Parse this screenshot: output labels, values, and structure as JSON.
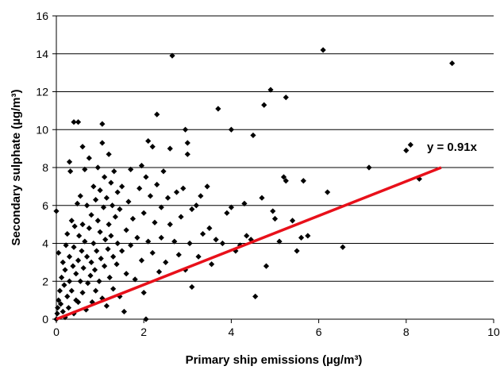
{
  "chart_data": {
    "type": "scatter",
    "title": "",
    "xlabel": "Primary ship emissions (µg/m³)",
    "ylabel": "Secondary sulphate  (µg/m³)",
    "xlim": [
      0,
      10
    ],
    "ylim": [
      0,
      16
    ],
    "xticks": [
      "0",
      "2",
      "4",
      "6",
      "8",
      "10"
    ],
    "yticks": [
      "0",
      "2",
      "4",
      "6",
      "8",
      "10",
      "12",
      "14",
      "16"
    ],
    "grid": "horizontal",
    "legend": "none",
    "colors": {
      "points": "#000000",
      "fit_line": "#e8101a",
      "grid": "#000000"
    },
    "fit": {
      "label": "y = 0.91x",
      "slope": 0.91,
      "x": [
        0,
        8.8
      ],
      "y": [
        0,
        8.0
      ]
    },
    "points": [
      [
        0.0,
        0.0
      ],
      [
        0.02,
        0.3
      ],
      [
        0.03,
        0.6
      ],
      [
        0.05,
        1.0
      ],
      [
        0.0,
        5.7
      ],
      [
        0.05,
        3.5
      ],
      [
        0.08,
        1.5
      ],
      [
        0.1,
        0.8
      ],
      [
        0.12,
        2.2
      ],
      [
        0.15,
        0.4
      ],
      [
        0.15,
        3.0
      ],
      [
        0.18,
        1.8
      ],
      [
        0.2,
        0.1
      ],
      [
        0.2,
        2.6
      ],
      [
        0.22,
        3.9
      ],
      [
        0.25,
        1.2
      ],
      [
        0.25,
        4.5
      ],
      [
        0.28,
        0.6
      ],
      [
        0.3,
        2.0
      ],
      [
        0.3,
        3.3
      ],
      [
        0.3,
        8.3
      ],
      [
        0.32,
        7.8
      ],
      [
        0.35,
        1.5
      ],
      [
        0.35,
        5.2
      ],
      [
        0.38,
        2.8
      ],
      [
        0.4,
        0.3
      ],
      [
        0.4,
        3.8
      ],
      [
        0.4,
        10.4
      ],
      [
        0.42,
        4.9
      ],
      [
        0.45,
        1.0
      ],
      [
        0.45,
        2.4
      ],
      [
        0.48,
        6.1
      ],
      [
        0.5,
        10.4
      ],
      [
        0.5,
        3.1
      ],
      [
        0.5,
        0.9
      ],
      [
        0.52,
        4.4
      ],
      [
        0.55,
        2.0
      ],
      [
        0.55,
        6.5
      ],
      [
        0.58,
        3.6
      ],
      [
        0.6,
        9.1
      ],
      [
        0.6,
        1.4
      ],
      [
        0.6,
        5.0
      ],
      [
        0.62,
        2.7
      ],
      [
        0.65,
        7.9
      ],
      [
        0.65,
        4.1
      ],
      [
        0.68,
        0.5
      ],
      [
        0.7,
        3.3
      ],
      [
        0.7,
        6.0
      ],
      [
        0.72,
        1.9
      ],
      [
        0.75,
        8.5
      ],
      [
        0.75,
        4.8
      ],
      [
        0.78,
        2.3
      ],
      [
        0.8,
        5.5
      ],
      [
        0.8,
        3.0
      ],
      [
        0.82,
        0.9
      ],
      [
        0.85,
        7.0
      ],
      [
        0.85,
        4.0
      ],
      [
        0.88,
        2.6
      ],
      [
        0.9,
        6.3
      ],
      [
        0.9,
        1.5
      ],
      [
        0.92,
        3.6
      ],
      [
        0.95,
        5.2
      ],
      [
        0.95,
        8.0
      ],
      [
        0.98,
        2.0
      ],
      [
        1.0,
        4.6
      ],
      [
        1.0,
        6.8
      ],
      [
        1.02,
        3.2
      ],
      [
        1.05,
        9.3
      ],
      [
        1.05,
        1.1
      ],
      [
        1.05,
        10.3
      ],
      [
        1.08,
        5.9
      ],
      [
        1.1,
        7.5
      ],
      [
        1.1,
        2.8
      ],
      [
        1.12,
        4.2
      ],
      [
        1.15,
        6.4
      ],
      [
        1.15,
        0.7
      ],
      [
        1.18,
        3.7
      ],
      [
        1.2,
        8.7
      ],
      [
        1.2,
        5.0
      ],
      [
        1.22,
        2.2
      ],
      [
        1.25,
        7.2
      ],
      [
        1.25,
        4.4
      ],
      [
        1.28,
        6.0
      ],
      [
        1.3,
        3.3
      ],
      [
        1.3,
        1.6
      ],
      [
        1.32,
        7.8
      ],
      [
        1.35,
        5.4
      ],
      [
        1.38,
        2.9
      ],
      [
        1.4,
        6.7
      ],
      [
        1.4,
        4.0
      ],
      [
        1.45,
        1.2
      ],
      [
        1.45,
        5.8
      ],
      [
        1.5,
        3.6
      ],
      [
        1.5,
        7.0
      ],
      [
        1.55,
        0.4
      ],
      [
        1.6,
        4.7
      ],
      [
        1.6,
        2.4
      ],
      [
        1.65,
        6.2
      ],
      [
        1.7,
        7.9
      ],
      [
        1.7,
        3.9
      ],
      [
        1.75,
        5.3
      ],
      [
        1.8,
        2.1
      ],
      [
        1.85,
        4.3
      ],
      [
        1.9,
        6.9
      ],
      [
        1.95,
        3.1
      ],
      [
        1.95,
        8.1
      ],
      [
        2.0,
        5.6
      ],
      [
        2.0,
        1.4
      ],
      [
        2.05,
        7.5
      ],
      [
        2.05,
        0.0
      ],
      [
        2.1,
        9.4
      ],
      [
        2.1,
        4.1
      ],
      [
        2.15,
        6.5
      ],
      [
        2.2,
        3.5
      ],
      [
        2.2,
        9.1
      ],
      [
        2.25,
        5.1
      ],
      [
        2.3,
        7.1
      ],
      [
        2.3,
        10.8
      ],
      [
        2.35,
        2.5
      ],
      [
        2.4,
        5.9
      ],
      [
        2.4,
        4.3
      ],
      [
        2.45,
        7.8
      ],
      [
        2.5,
        3.0
      ],
      [
        2.55,
        6.4
      ],
      [
        2.6,
        5.0
      ],
      [
        2.6,
        9.0
      ],
      [
        2.65,
        13.9
      ],
      [
        2.7,
        4.1
      ],
      [
        2.75,
        6.7
      ],
      [
        2.8,
        3.4
      ],
      [
        2.85,
        5.4
      ],
      [
        2.9,
        6.9
      ],
      [
        2.95,
        10.0
      ],
      [
        2.95,
        2.6
      ],
      [
        3.0,
        9.3
      ],
      [
        3.0,
        8.7
      ],
      [
        3.05,
        4.0
      ],
      [
        3.1,
        1.7
      ],
      [
        3.1,
        5.8
      ],
      [
        3.2,
        6.0
      ],
      [
        3.25,
        3.3
      ],
      [
        3.3,
        6.5
      ],
      [
        3.35,
        4.5
      ],
      [
        3.45,
        7.0
      ],
      [
        3.5,
        4.8
      ],
      [
        3.55,
        2.9
      ],
      [
        3.65,
        4.2
      ],
      [
        3.7,
        11.1
      ],
      [
        3.8,
        4.0
      ],
      [
        3.9,
        5.6
      ],
      [
        4.0,
        5.9
      ],
      [
        4.0,
        10.0
      ],
      [
        4.1,
        3.6
      ],
      [
        4.2,
        3.9
      ],
      [
        4.3,
        6.1
      ],
      [
        4.35,
        4.4
      ],
      [
        4.45,
        4.2
      ],
      [
        4.5,
        9.7
      ],
      [
        4.55,
        1.2
      ],
      [
        4.7,
        6.4
      ],
      [
        4.75,
        11.3
      ],
      [
        4.8,
        2.8
      ],
      [
        4.9,
        12.1
      ],
      [
        4.95,
        5.7
      ],
      [
        5.0,
        5.3
      ],
      [
        5.1,
        4.1
      ],
      [
        5.2,
        7.5
      ],
      [
        5.25,
        7.3
      ],
      [
        5.25,
        11.7
      ],
      [
        5.4,
        5.2
      ],
      [
        5.5,
        3.6
      ],
      [
        5.6,
        4.3
      ],
      [
        5.65,
        7.3
      ],
      [
        5.75,
        4.4
      ],
      [
        6.1,
        14.2
      ],
      [
        6.2,
        6.7
      ],
      [
        6.55,
        3.8
      ],
      [
        7.15,
        8.0
      ],
      [
        8.0,
        8.9
      ],
      [
        8.1,
        9.2
      ],
      [
        8.3,
        7.4
      ],
      [
        9.05,
        13.5
      ]
    ]
  }
}
